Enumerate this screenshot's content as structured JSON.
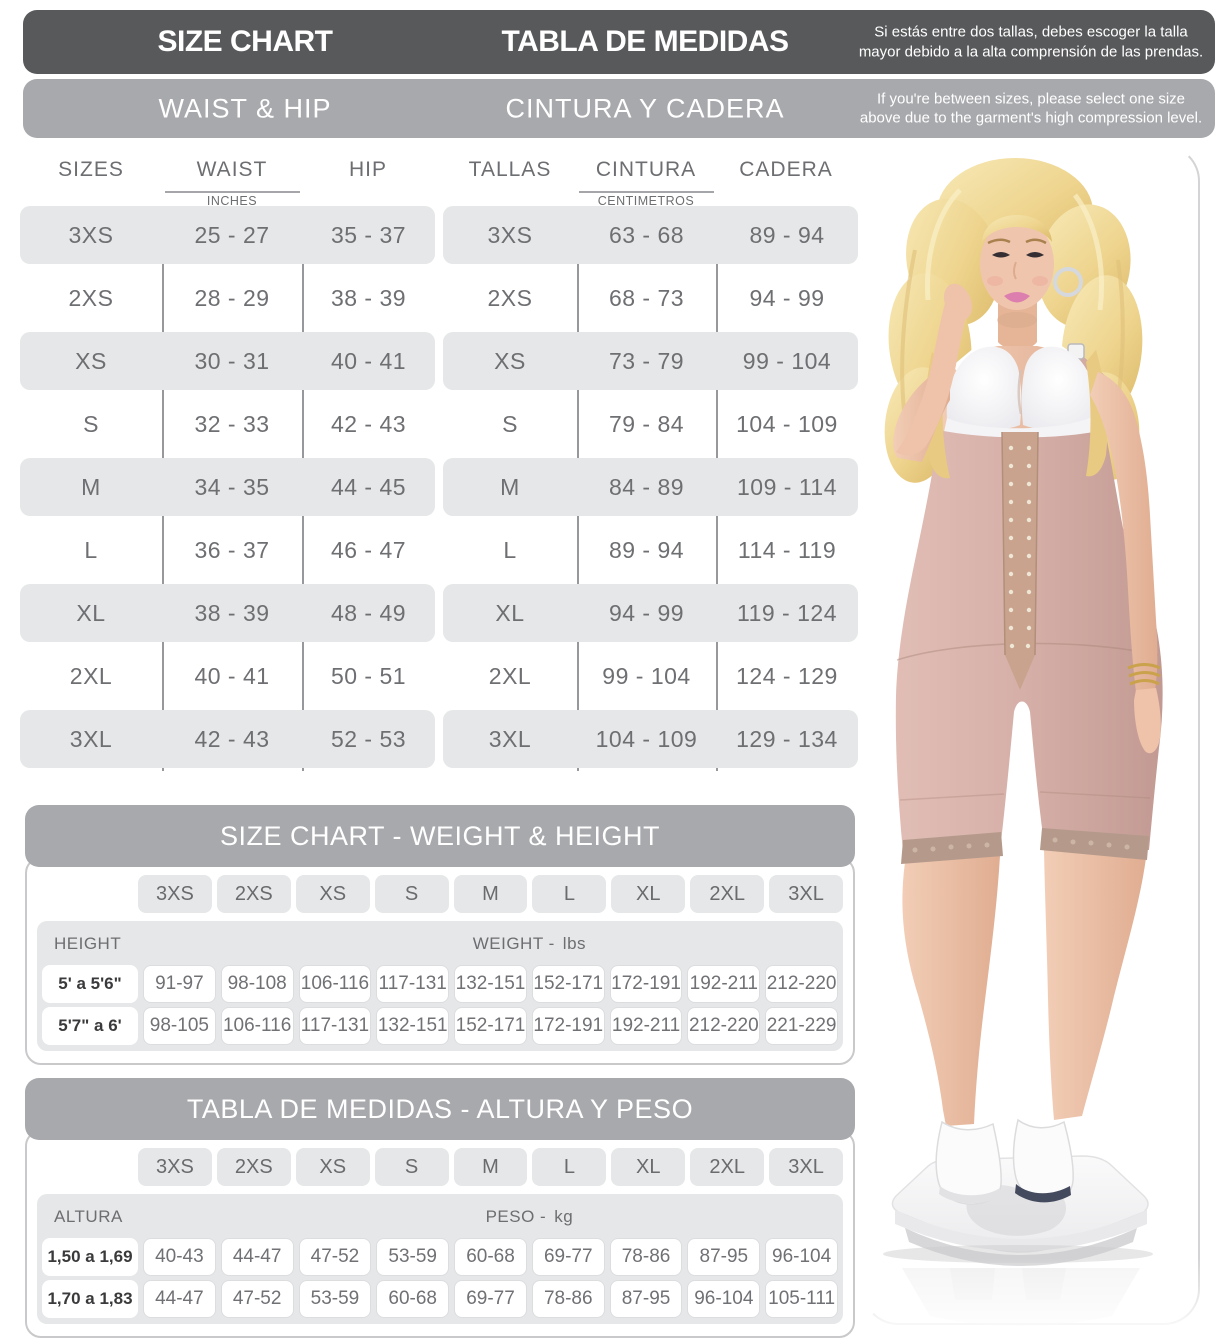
{
  "header": {
    "title_en": "SIZE CHART",
    "title_es": "TABLA DE MEDIDAS",
    "note_es": "Si estás entre dos tallas, debes escoger la talla mayor debido a la alta comprensión de las prendas.",
    "sub_en": "WAIST & HIP",
    "sub_es": "CINTURA Y CADERA",
    "note_en": "If you're between sizes, please select one size above due to the garment's high compression level."
  },
  "measure_table": {
    "col_sizes": "SIZES",
    "col_waist": "WAIST",
    "unit_in": "INCHES",
    "col_hip": "HIP",
    "col_tallas": "TALLAS",
    "col_cintura": "CINTURA",
    "unit_cm": "CENTIMETROS",
    "col_cadera": "CADERA",
    "rows": [
      {
        "size": "3XS",
        "waist_in": "25 - 27",
        "hip_in": "35 - 37",
        "waist_cm": "63 - 68",
        "hip_cm": "89 - 94"
      },
      {
        "size": "2XS",
        "waist_in": "28 - 29",
        "hip_in": "38 - 39",
        "waist_cm": "68 - 73",
        "hip_cm": "94 - 99"
      },
      {
        "size": "XS",
        "waist_in": "30 - 31",
        "hip_in": "40 - 41",
        "waist_cm": "73 - 79",
        "hip_cm": "99 - 104"
      },
      {
        "size": "S",
        "waist_in": "32 - 33",
        "hip_in": "42 - 43",
        "waist_cm": "79 - 84",
        "hip_cm": "104 - 109"
      },
      {
        "size": "M",
        "waist_in": "34 - 35",
        "hip_in": "44 - 45",
        "waist_cm": "84 - 89",
        "hip_cm": "109 - 114"
      },
      {
        "size": "L",
        "waist_in": "36 - 37",
        "hip_in": "46 - 47",
        "waist_cm": "89 - 94",
        "hip_cm": "114 - 119"
      },
      {
        "size": "XL",
        "waist_in": "38 - 39",
        "hip_in": "48 - 49",
        "waist_cm": "94 - 99",
        "hip_cm": "119 - 124"
      },
      {
        "size": "2XL",
        "waist_in": "40 - 41",
        "hip_in": "50 - 51",
        "waist_cm": "99 - 104",
        "hip_cm": "124 - 129"
      },
      {
        "size": "3XL",
        "waist_in": "42 - 43",
        "hip_in": "52 - 53",
        "waist_cm": "104 - 109",
        "hip_cm": "129 - 134"
      }
    ]
  },
  "weight_height": {
    "title": "SIZE CHART - WEIGHT & HEIGHT",
    "sizes": [
      "3XS",
      "2XS",
      "XS",
      "S",
      "M",
      "L",
      "XL",
      "2XL",
      "3XL"
    ],
    "height_label": "HEIGHT",
    "weight_label": "WEIGHT -",
    "weight_unit": "lbs",
    "rows": [
      {
        "height": "5' a 5'6\"",
        "values": [
          "91-97",
          "98-108",
          "106-116",
          "117-131",
          "132-151",
          "152-171",
          "172-191",
          "192-211",
          "212-220"
        ]
      },
      {
        "height": "5'7\" a 6'",
        "values": [
          "98-105",
          "106-116",
          "117-131",
          "132-151",
          "152-171",
          "172-191",
          "192-211",
          "212-220",
          "221-229"
        ]
      }
    ]
  },
  "altura_peso": {
    "title": "TABLA DE MEDIDAS - ALTURA Y PESO",
    "sizes": [
      "3XS",
      "2XS",
      "XS",
      "S",
      "M",
      "L",
      "XL",
      "2XL",
      "3XL"
    ],
    "height_label": "ALTURA",
    "weight_label": "PESO -",
    "weight_unit": "kg",
    "rows": [
      {
        "height": "1,50 a 1,69",
        "values": [
          "40-43",
          "44-47",
          "47-52",
          "53-59",
          "60-68",
          "69-77",
          "78-86",
          "87-95",
          "96-104"
        ]
      },
      {
        "height": "1,70 a 1,83",
        "values": [
          "44-47",
          "47-52",
          "53-59",
          "60-68",
          "69-77",
          "78-86",
          "87-95",
          "96-104",
          "105-111"
        ]
      }
    ]
  },
  "colors": {
    "header_dark": "#58595b",
    "header_gray": "#a8a9ad",
    "row_gray": "#e6e7e8",
    "text_gray": "#6d6e71",
    "garment_pink": "#d2aba3"
  }
}
